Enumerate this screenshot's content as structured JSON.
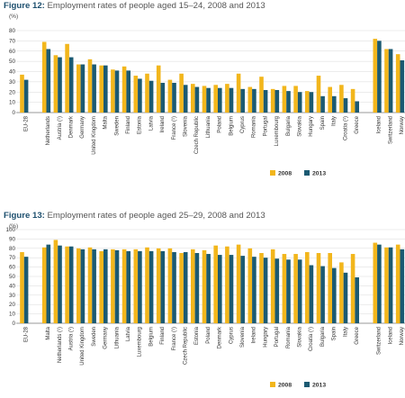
{
  "colors": {
    "y2008": "#f2b61c",
    "y2013": "#1b5a72",
    "grid": "#d9d9d9",
    "axis": "#777777",
    "text": "#333333"
  },
  "chart_data": [
    {
      "type": "bar",
      "figure_label": "Figure 12:",
      "title": "Employment rates of people aged 15–24, 2008 and 2013",
      "ylabel": "(%)",
      "ylim": [
        0,
        80
      ],
      "yticks": [
        0,
        10,
        20,
        30,
        40,
        50,
        60,
        70,
        80
      ],
      "grid": true,
      "legend_position": "bottom-right",
      "gap_after": [
        0,
        28
      ],
      "categories": [
        "EU-28",
        "Netherlands",
        "Austria (¹)",
        "Denmark",
        "Germany",
        "United Kingdom",
        "Malta",
        "Sweden",
        "Finland",
        "Estonia",
        "Latvia",
        "Ireland",
        "France (¹)",
        "Slovenia",
        "Czech Republic",
        "Lithuania",
        "Poland",
        "Belgium",
        "Cyprus",
        "Romania",
        "Portugal",
        "Luxembourg",
        "Bulgaria",
        "Slovakia",
        "Hungary",
        "Spain",
        "Italy",
        "Croatia (¹)",
        "Greece",
        "Iceland",
        "Switzerland",
        "Norway"
      ],
      "series": [
        {
          "name": "2008",
          "values": [
            37,
            69,
            56,
            67,
            47,
            52,
            46,
            42,
            45,
            36,
            38,
            46,
            32,
            38,
            28,
            26,
            27,
            28,
            38,
            25,
            35,
            23,
            26,
            26,
            21,
            36,
            25,
            27,
            23,
            72,
            62,
            57
          ]
        },
        {
          "name": "2013",
          "values": [
            32,
            62,
            54,
            54,
            47,
            47,
            46,
            41,
            41,
            33,
            31,
            29,
            29,
            27,
            25,
            24,
            24,
            24,
            23,
            23,
            22,
            22,
            21,
            20,
            20,
            16,
            16,
            14,
            11,
            70,
            62,
            51
          ]
        }
      ]
    },
    {
      "type": "bar",
      "figure_label": "Figure 13:",
      "title": "Employment rates of people aged 25–29, 2008 and 2013",
      "ylabel": "(%)",
      "ylim": [
        0,
        100
      ],
      "yticks": [
        0,
        10,
        20,
        30,
        40,
        50,
        60,
        70,
        80,
        90,
        100
      ],
      "grid": true,
      "legend_position": "bottom-right",
      "gap_after": [
        0,
        28
      ],
      "categories": [
        "EU-28",
        "Malta",
        "Netherlands (¹)",
        "Austria (¹)",
        "United Kingdom",
        "Sweden",
        "Germany",
        "Lithuania",
        "Latvia",
        "Luxembourg",
        "Belgium",
        "Finland",
        "France (¹)",
        "Czech Republic",
        "Estonia",
        "Poland",
        "Denmark",
        "Cyprus",
        "Slovenia",
        "Ireland",
        "Hungary",
        "Portugal",
        "Romania",
        "Slovakia",
        "Croatia (¹)",
        "Bulgaria",
        "Spain",
        "Italy",
        "Greece",
        "Switzerland",
        "Iceland",
        "Norway"
      ],
      "series": [
        {
          "name": "2008",
          "values": [
            76,
            81,
            89,
            82,
            80,
            81,
            77,
            79,
            79,
            79,
            81,
            80,
            80,
            75,
            79,
            78,
            83,
            82,
            84,
            80,
            75,
            79,
            74,
            74,
            76,
            75,
            75,
            65,
            74,
            86,
            81,
            84
          ]
        },
        {
          "name": "2013",
          "values": [
            71,
            84,
            83,
            82,
            79,
            79,
            79,
            78,
            77,
            77,
            77,
            77,
            76,
            76,
            75,
            74,
            73,
            73,
            72,
            71,
            70,
            69,
            68,
            68,
            62,
            61,
            59,
            54,
            49,
            84,
            81,
            79
          ]
        }
      ]
    }
  ]
}
